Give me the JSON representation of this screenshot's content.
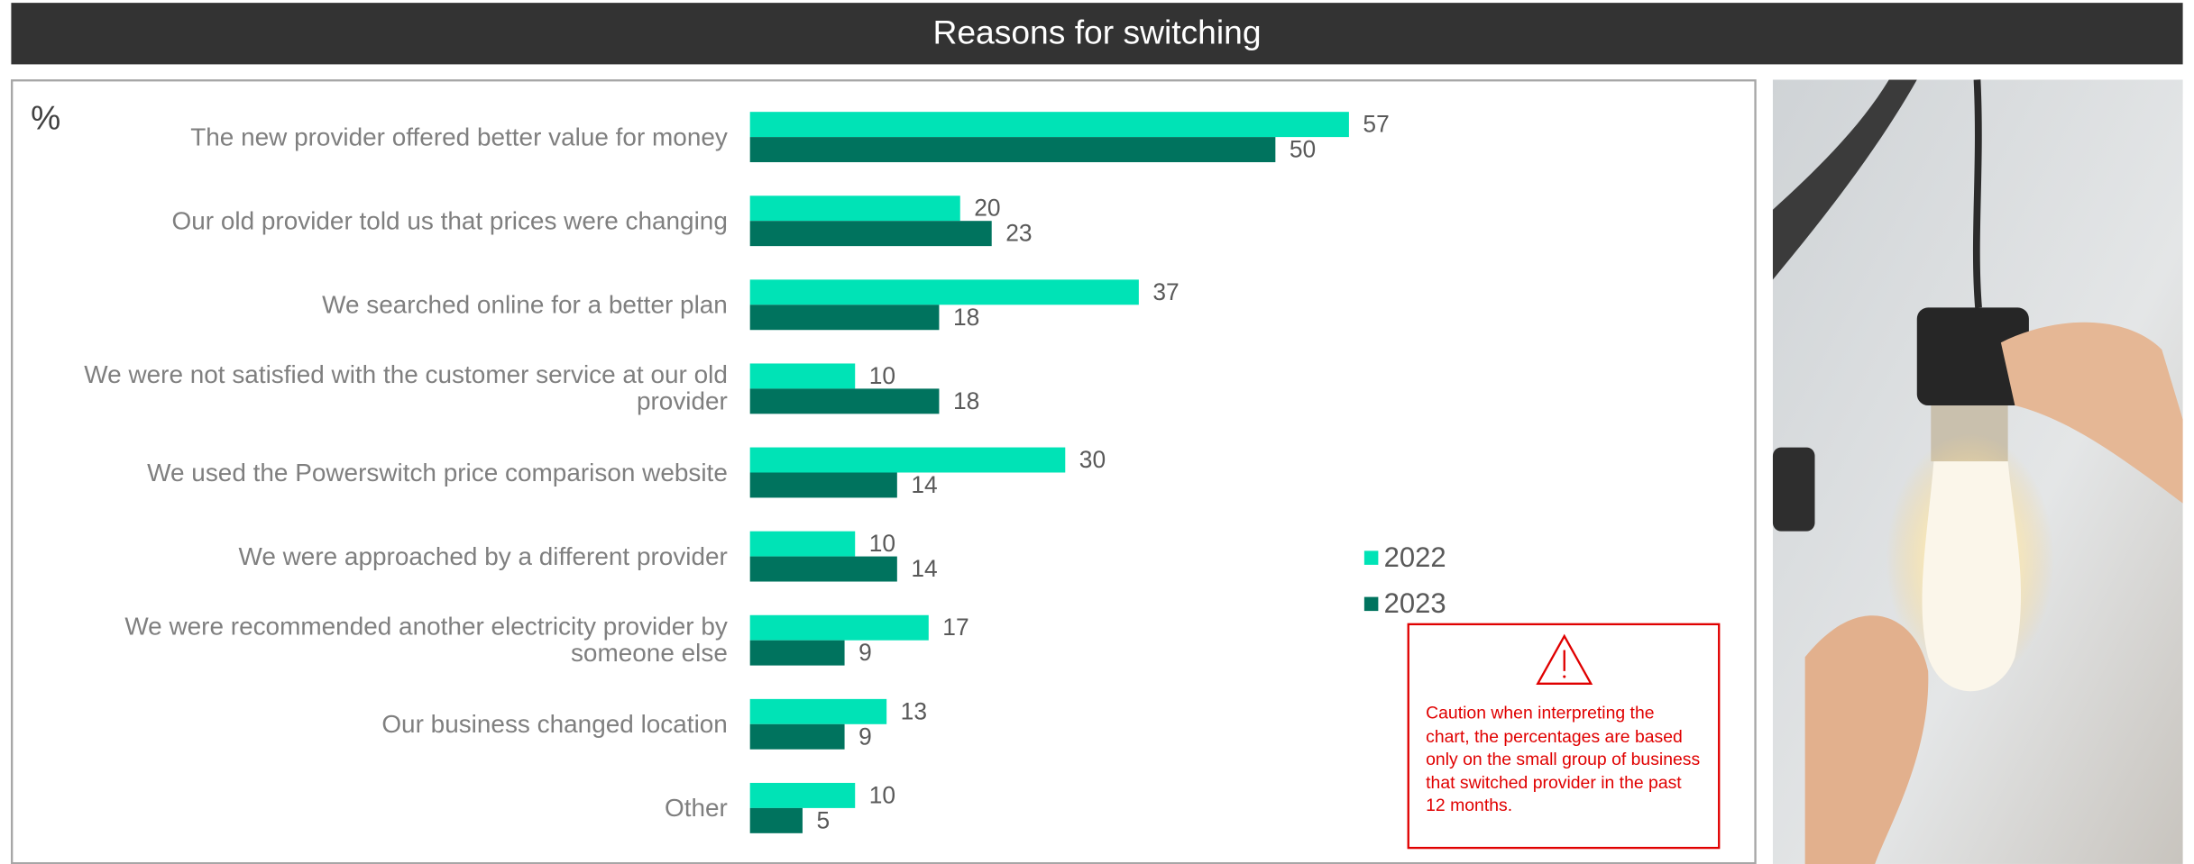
{
  "chart_data": {
    "type": "bar",
    "title": "Reasons for switching",
    "unit_label": "%",
    "categories": [
      "The new provider offered better value for money",
      "Our old provider told us that prices were changing",
      "We searched online for a better plan",
      "We were not satisfied with the customer service at our old provider",
      "We used the Powerswitch price comparison website",
      "We were approached by a different provider",
      "We were recommended another electricity provider by someone else",
      "Our business changed location",
      "Other"
    ],
    "series": [
      {
        "name": "2022",
        "color": "#00e3b6",
        "values": [
          57,
          20,
          37,
          10,
          30,
          10,
          17,
          13,
          10
        ]
      },
      {
        "name": "2023",
        "color": "#00735e",
        "values": [
          50,
          23,
          18,
          18,
          14,
          14,
          9,
          9,
          5
        ]
      }
    ],
    "annotation": "Caution when interpreting the chart, the percentages are based only on the small group of business that switched provider in the past 12 months."
  }
}
